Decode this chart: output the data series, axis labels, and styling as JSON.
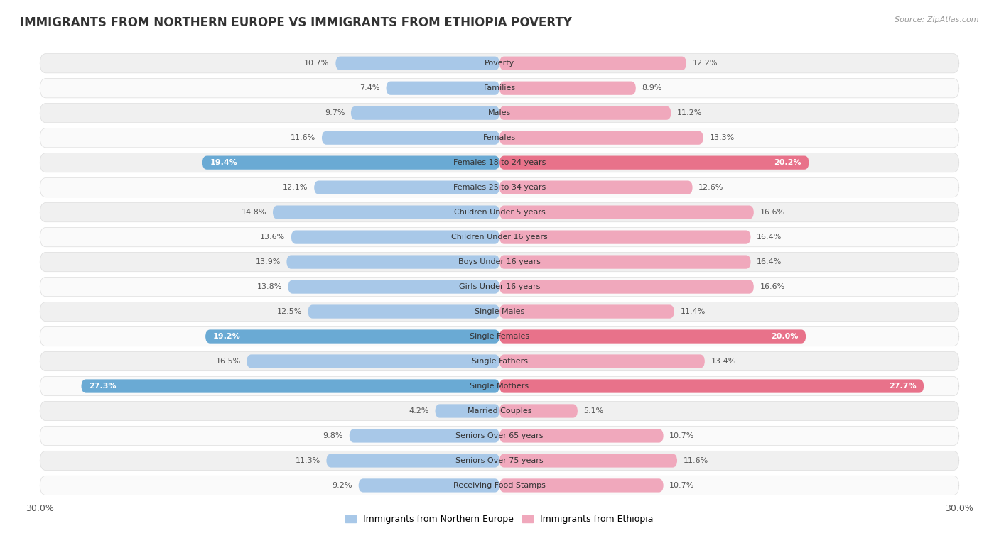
{
  "title": "IMMIGRANTS FROM NORTHERN EUROPE VS IMMIGRANTS FROM ETHIOPIA POVERTY",
  "source": "Source: ZipAtlas.com",
  "categories": [
    "Poverty",
    "Families",
    "Males",
    "Females",
    "Females 18 to 24 years",
    "Females 25 to 34 years",
    "Children Under 5 years",
    "Children Under 16 years",
    "Boys Under 16 years",
    "Girls Under 16 years",
    "Single Males",
    "Single Females",
    "Single Fathers",
    "Single Mothers",
    "Married Couples",
    "Seniors Over 65 years",
    "Seniors Over 75 years",
    "Receiving Food Stamps"
  ],
  "left_values": [
    10.7,
    7.4,
    9.7,
    11.6,
    19.4,
    12.1,
    14.8,
    13.6,
    13.9,
    13.8,
    12.5,
    19.2,
    16.5,
    27.3,
    4.2,
    9.8,
    11.3,
    9.2
  ],
  "right_values": [
    12.2,
    8.9,
    11.2,
    13.3,
    20.2,
    12.6,
    16.6,
    16.4,
    16.4,
    16.6,
    11.4,
    20.0,
    13.4,
    27.7,
    5.1,
    10.7,
    11.6,
    10.7
  ],
  "left_color_normal": "#a8c8e8",
  "right_color_normal": "#f0a8bc",
  "left_color_highlight": "#6aaad4",
  "right_color_highlight": "#e8728a",
  "left_label": "Immigrants from Northern Europe",
  "right_label": "Immigrants from Ethiopia",
  "highlight_indices": [
    4,
    11,
    13
  ],
  "x_max": 30.0,
  "row_bg_odd": "#f0f0f0",
  "row_bg_even": "#fafafa",
  "title_fontsize": 12,
  "value_fontsize": 8,
  "category_fontsize": 8,
  "legend_fontsize": 9,
  "source_fontsize": 8
}
